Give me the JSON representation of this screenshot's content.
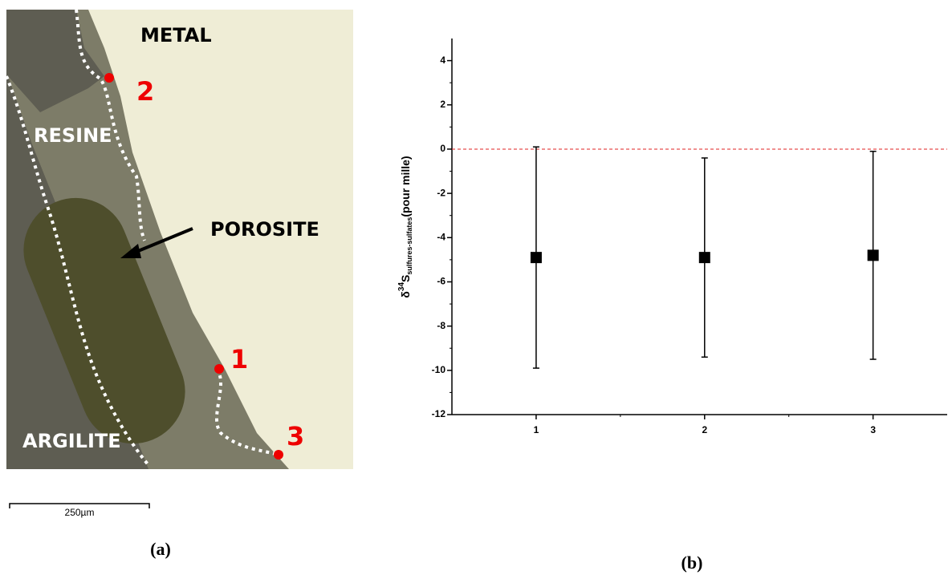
{
  "micrograph": {
    "labels": {
      "metal": "METAL",
      "resine": "RESINE",
      "porosite": "POROSITE",
      "argilite": "ARGILITE"
    },
    "points": [
      "1",
      "2",
      "3"
    ],
    "scale_bar": "250µm",
    "caption": "(a)"
  },
  "chart_data": {
    "type": "errorbar",
    "caption": "(b)",
    "y_label": {
      "prefix": "δ",
      "sup": "34",
      "main": "S",
      "sub": "sulfures-sulfates",
      "suffix": "(pour mille)"
    },
    "x": [
      1,
      2,
      3
    ],
    "values": [
      -4.9,
      -4.9,
      -4.8
    ],
    "errors": [
      5.0,
      4.5,
      4.7
    ],
    "color": "#000000",
    "xlim": [
      0.5,
      3.44
    ],
    "xticks": [
      1,
      2,
      3
    ],
    "xminorticks": [
      1.5,
      2.5
    ],
    "ylim": [
      -12,
      5
    ],
    "yticks": [
      -12,
      -10,
      -8,
      -6,
      -4,
      -2,
      0,
      2,
      4
    ],
    "yminorticks": [
      -11,
      -9,
      -7,
      -5,
      -3,
      -1,
      1,
      3
    ],
    "reference_line": {
      "value": 0,
      "color": "#e02020"
    }
  }
}
